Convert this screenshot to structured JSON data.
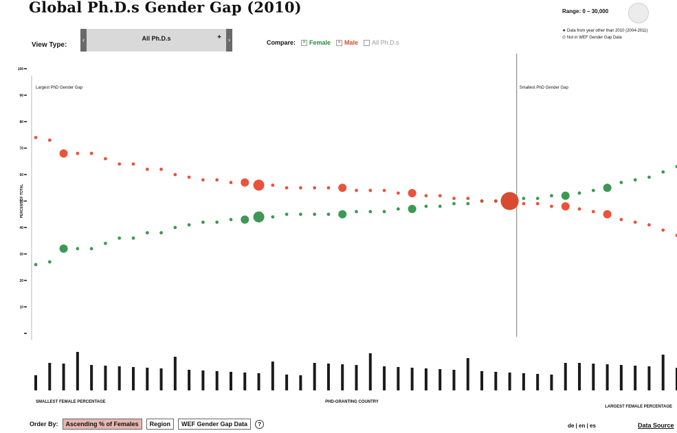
{
  "title": "Global Ph.D.s Gender Gap (2010)",
  "range": {
    "label": "Range: 0",
    "dash": "–",
    "max": "30,000"
  },
  "notes": [
    "★ Data from year other than 2010 (2004-2011)",
    "∅ Not in WEF Gender Gap Data"
  ],
  "view_type": {
    "label": "View Type:",
    "value": "All Ph.D.s",
    "plus": "+",
    "prev": "‹",
    "next": "›"
  },
  "compare": {
    "label": "Compare:",
    "options": [
      {
        "label": "Female",
        "checked": true,
        "color": "#27893f"
      },
      {
        "label": "Male",
        "checked": true,
        "color": "#e0472a"
      },
      {
        "label": "All Ph.D.s",
        "checked": false,
        "color": "#9a9a9a"
      }
    ]
  },
  "chart_data": {
    "type": "scatter",
    "ylabel": "PERCENT OF TOTAL",
    "xlabel": "PHD-GRANTING COUNTRY",
    "yticks": [
      0,
      10,
      20,
      30,
      40,
      50,
      60,
      70,
      80,
      90,
      100
    ],
    "ylim": [
      0,
      100
    ],
    "annotations": {
      "left": "Largest PhD Gender Gap",
      "right": "Smallest PhD Gender Gap"
    },
    "bottom_labels": {
      "left": "SMALLEST FEMALE PERCENTAGE",
      "right": "LARGEST FEMALE PERCENTAGE"
    },
    "divider_index": 34,
    "series": [
      {
        "name": "Female",
        "color": "#2b8f45",
        "values": [
          26,
          27,
          32,
          32,
          32,
          34,
          36,
          36,
          38,
          38,
          40,
          41,
          42,
          42,
          43,
          43,
          44,
          44,
          45,
          45,
          45,
          45,
          45,
          46,
          46,
          46,
          47,
          47,
          48,
          48,
          49,
          49,
          50,
          50,
          50,
          51,
          51,
          52,
          52,
          53,
          54,
          55,
          57,
          58,
          59,
          61,
          63
        ],
        "sizes": [
          1,
          1,
          2,
          1,
          1,
          1,
          1,
          1,
          1,
          1,
          1,
          1,
          1,
          1,
          1,
          2,
          3,
          1,
          1,
          1,
          1,
          1,
          2,
          1,
          1,
          1,
          1,
          2,
          1,
          1,
          1,
          1,
          1,
          1,
          5,
          1,
          1,
          1,
          2,
          1,
          1,
          2,
          1,
          1,
          1,
          1,
          1
        ]
      },
      {
        "name": "Male",
        "color": "#e8432b",
        "values": [
          74,
          73,
          68,
          68,
          68,
          66,
          64,
          64,
          62,
          62,
          60,
          59,
          58,
          58,
          57,
          57,
          56,
          56,
          55,
          55,
          55,
          55,
          55,
          54,
          54,
          54,
          53,
          53,
          52,
          52,
          51,
          51,
          50,
          50,
          50,
          49,
          49,
          48,
          48,
          47,
          46,
          45,
          43,
          42,
          41,
          39,
          37
        ],
        "sizes": [
          1,
          1,
          2,
          1,
          1,
          1,
          1,
          1,
          1,
          1,
          1,
          1,
          1,
          1,
          1,
          2,
          3,
          1,
          1,
          1,
          1,
          1,
          2,
          1,
          1,
          1,
          1,
          2,
          1,
          1,
          1,
          1,
          1,
          1,
          5,
          1,
          1,
          1,
          2,
          1,
          1,
          2,
          1,
          1,
          1,
          1,
          1
        ]
      }
    ]
  },
  "order_by": {
    "label": "Order By:",
    "options": [
      "Ascending % of Females",
      "Region",
      "WEF Gender Gap Data"
    ],
    "help": "?"
  },
  "language": "de | en | es",
  "data_source": "Data Source"
}
